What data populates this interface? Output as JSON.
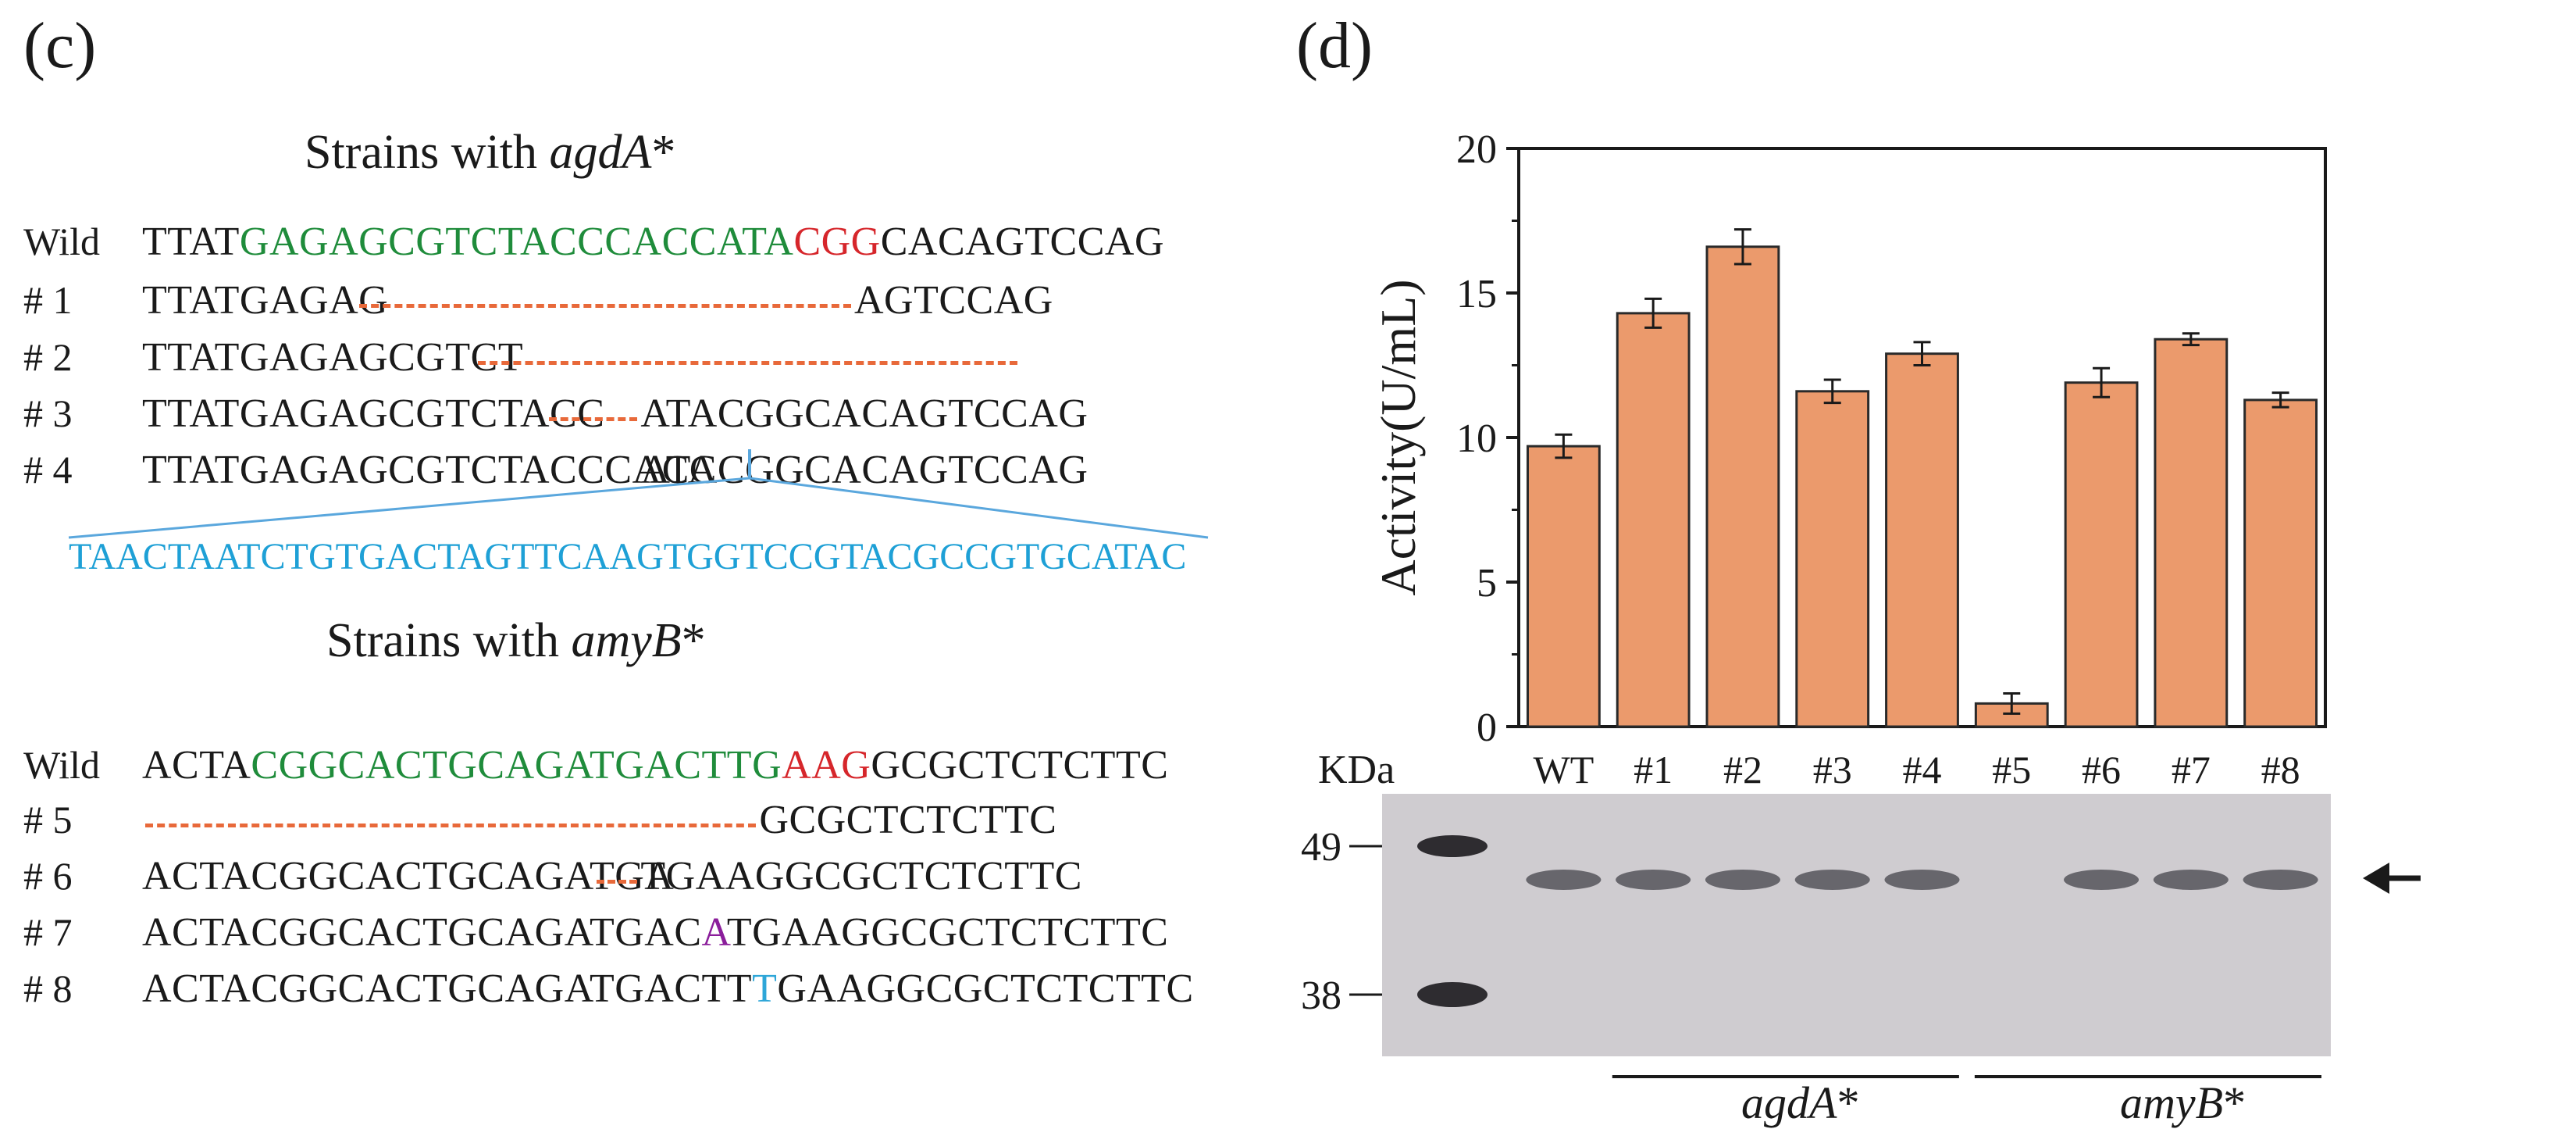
{
  "panel_c": {
    "label": "(c)",
    "agdA_heading": {
      "prefix": "Strains with ",
      "gene": "agdA",
      "suffix": "*"
    },
    "agdA_rows": [
      {
        "label": "Wild",
        "parts": [
          [
            "k",
            "TTAT"
          ],
          [
            "g",
            "GAGAGCGTCTACCCACCATA"
          ],
          [
            "r",
            "CGG"
          ],
          [
            "k",
            "CACAGTCCAG"
          ]
        ]
      },
      {
        "label": "# 1",
        "left": "TTATGAGAG",
        "right": "AGTCCAG"
      },
      {
        "label": "# 2",
        "left": "TTATGAGAGCGTCT",
        "right": ""
      },
      {
        "label": "# 3",
        "left": "TTATGAGAGCGTCTACC",
        "right": "ATACGGCACAGTCCAG"
      },
      {
        "label": "# 4",
        "left": "TTATGAGAGCGTCTACCCACC",
        "right": "ATACGGCACAGTCCAG"
      }
    ],
    "insert_sequence": "TAACTAATCTGTGACTAGTTCAAGTGGTCCGTACGCCGTGCATAC",
    "amyB_heading": {
      "prefix": "Strains with ",
      "gene": "amyB",
      "suffix": "*"
    },
    "amyB_rows": [
      {
        "label": "Wild",
        "parts": [
          [
            "k",
            "ACTA"
          ],
          [
            "g",
            "CGGCACTGCAGATGACTTG"
          ],
          [
            "r",
            "AAG"
          ],
          [
            "k",
            "GCGCTCTCTTC"
          ]
        ]
      },
      {
        "label": "# 5",
        "left": "",
        "right": "GCGCTCTCTTC"
      },
      {
        "label": "# 6",
        "left": "ACTACGGCACTGCAGATGA",
        "right": "TGAAGGCGCTCTCTTC"
      },
      {
        "label": "# 7",
        "parts": [
          [
            "k",
            "ACTACGGCACTGCAGATGAC"
          ],
          [
            "p",
            "A"
          ],
          [
            "k",
            "TGAAGGCGCTCTCTTC"
          ]
        ]
      },
      {
        "label": "# 8",
        "parts": [
          [
            "k",
            "ACTACGGCACTGCAGATGACTT"
          ],
          [
            "b",
            "T"
          ],
          [
            "k",
            "GAAGGCGCTCTCTTC"
          ]
        ]
      }
    ]
  },
  "panel_d": {
    "label": "(d)"
  },
  "chart_data": {
    "type": "bar",
    "categories": [
      "WT",
      "#1",
      "#2",
      "#3",
      "#4",
      "#5",
      "#6",
      "#7",
      "#8"
    ],
    "values": [
      9.7,
      14.3,
      16.6,
      11.6,
      12.9,
      0.8,
      11.9,
      13.4,
      11.3
    ],
    "errors": [
      0.4,
      0.5,
      0.6,
      0.4,
      0.4,
      0.35,
      0.5,
      0.2,
      0.25
    ],
    "ylabel": "Activity(U/mL)",
    "xlabel": "",
    "ylim": [
      0,
      20
    ],
    "yticks": [
      0,
      5,
      10,
      15,
      20
    ],
    "bar_color": "#eb9a6c",
    "bar_edge": "#2a2a2a",
    "grid": false
  },
  "gel": {
    "unit_label": "KDa",
    "markers": [
      "49",
      "38"
    ],
    "band_lanes": [
      "WT",
      "#1",
      "#2",
      "#3",
      "#4",
      "#6",
      "#7",
      "#8"
    ],
    "groups": [
      {
        "gene": "agdA",
        "suffix": "*"
      },
      {
        "gene": "amyB",
        "suffix": "*"
      }
    ],
    "background_color": "#cfccd0"
  }
}
